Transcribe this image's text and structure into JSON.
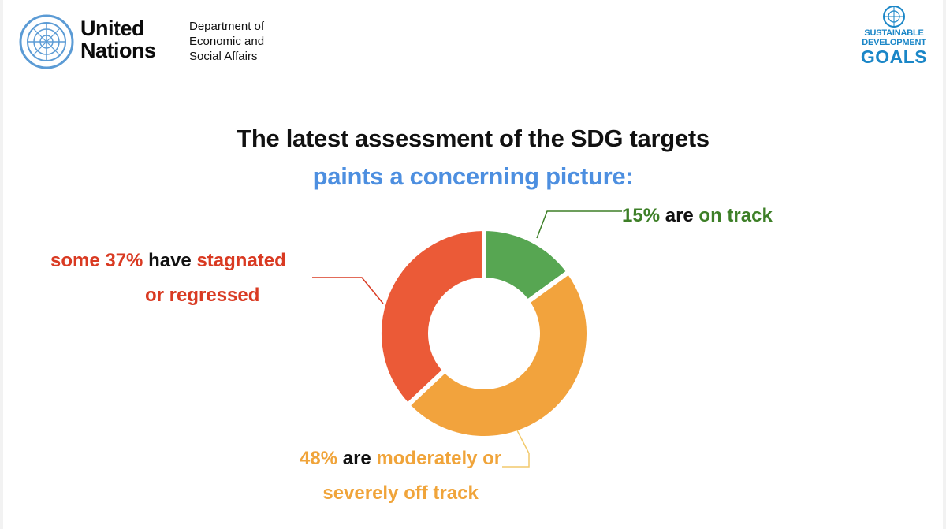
{
  "header": {
    "org_line1": "United",
    "org_line2": "Nations",
    "dept_line1": "Department of",
    "dept_line2": "Economic and",
    "dept_line3": "Social Affairs",
    "sdg_line1": "SUSTAINABLE",
    "sdg_line2": "DEVELOPMENT",
    "sdg_line3": "GOALS"
  },
  "icons": {
    "un_emblem": "un-emblem-icon",
    "sdg_emblem": "sdg-emblem-icon"
  },
  "title_line1": "The latest assessment of the SDG targets",
  "title_line2": "paints a concerning picture:",
  "labels": {
    "on_track_pct": "15%",
    "on_track_mid": " are ",
    "on_track_status": "on track",
    "stagnated_prefix": "some 37%",
    "stagnated_mid": " have ",
    "stagnated_status1": "stagnated",
    "stagnated_status2": "or regressed",
    "off_track_pct": "48%",
    "off_track_mid": " are ",
    "off_track_status1": "moderately or",
    "off_track_status2": "severely off track"
  },
  "colors": {
    "on_track": "#57a652",
    "off_track": "#f2a33d",
    "stagnated": "#eb5a37",
    "title_accent": "#4d8fe0"
  },
  "chart_data": {
    "type": "pie",
    "donut": true,
    "title": "The latest assessment of the SDG targets paints a concerning picture:",
    "categories": [
      "on track",
      "moderately or severely off track",
      "stagnated or regressed"
    ],
    "values": [
      15,
      48,
      37
    ],
    "unit": "%"
  }
}
